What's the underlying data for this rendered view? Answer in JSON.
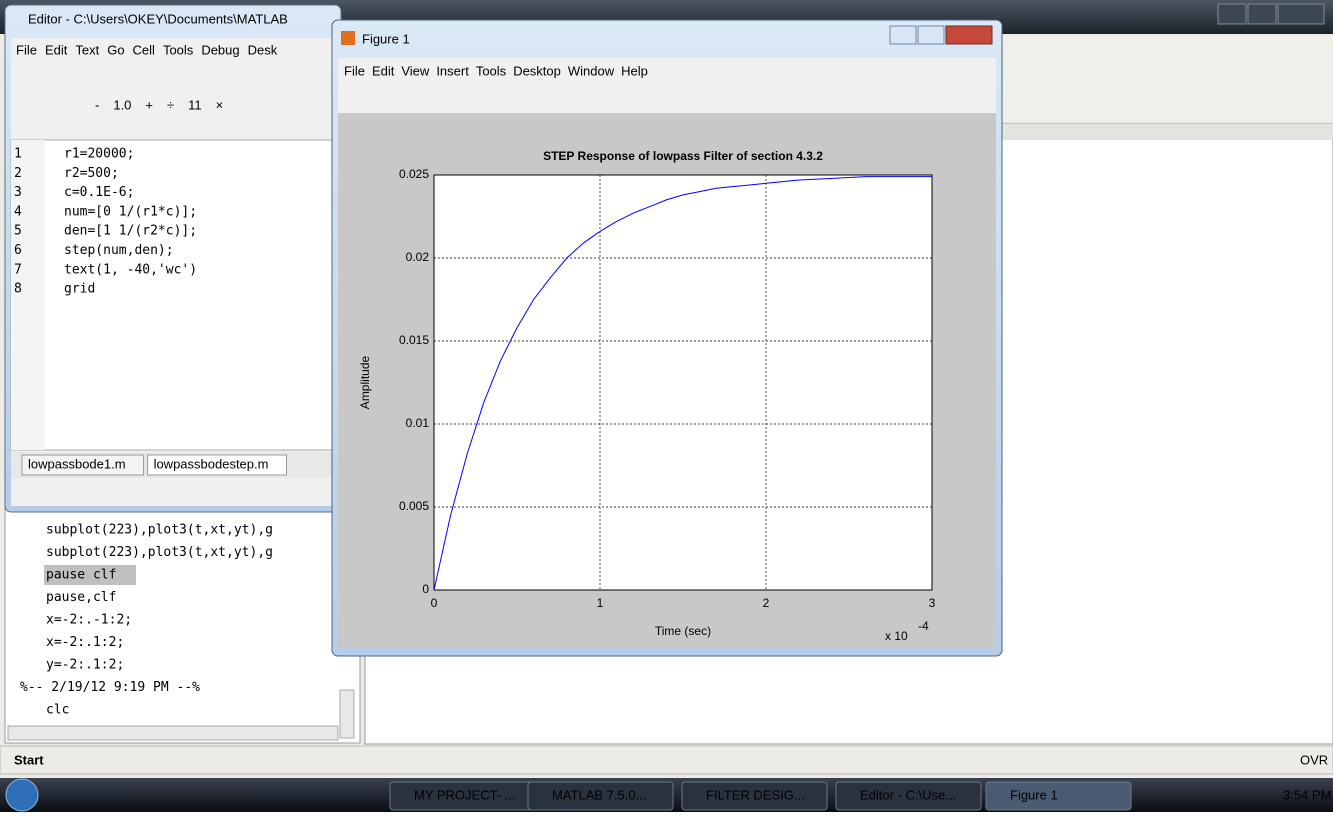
{
  "editor": {
    "title": "Editor - C:\\Users\\OKEY\\Documents\\MATLAB",
    "menu": [
      "File",
      "Edit",
      "Text",
      "Go",
      "Cell",
      "Tools",
      "Debug",
      "Desk"
    ],
    "toolbar": [
      "-",
      "1.0",
      "+",
      "÷",
      "11",
      "×"
    ],
    "line_numbers": [
      "1",
      "2",
      "3",
      "4",
      "5",
      "6",
      "7",
      "8"
    ],
    "code": [
      "r1=20000;",
      "r2=500;",
      "c=0.1E-6;",
      "num=[0 1/(r1*c)];",
      "den=[1 1/(r2*c)];",
      "step(num,den);",
      "text(1, -40,'wc')",
      "grid"
    ],
    "tabs": [
      "lowpassbode1.m",
      "lowpassbodestep.m"
    ]
  },
  "command_history": {
    "lines": [
      "subplot(223),plot3(t,xt,yt),g",
      "subplot(223),plot3(t,xt,yt),g",
      "pause clf",
      "pause,clf",
      "x=-2:.-1:2;",
      "x=-2:.1:2;",
      "y=-2:.1:2;",
      "%-- 2/19/12  9:19 PM --%",
      "clc"
    ]
  },
  "figure": {
    "title": "Figure 1",
    "menu": [
      "File",
      "Edit",
      "View",
      "Insert",
      "Tools",
      "Desktop",
      "Window",
      "Help"
    ]
  },
  "chart_data": {
    "type": "line",
    "title": "STEP Response of lowpass Filter of section 4.3.2",
    "xlabel": "Time (sec)",
    "ylabel": "Amplitude",
    "x_scale_label": "x 10",
    "x_scale_exponent": "-4",
    "x": [
      0,
      0.1,
      0.2,
      0.3,
      0.4,
      0.5,
      0.6,
      0.7,
      0.8,
      0.9,
      1.0,
      1.1,
      1.2,
      1.3,
      1.4,
      1.5,
      1.6,
      1.7,
      1.8,
      1.9,
      2.0,
      2.2,
      2.4,
      2.6,
      2.8,
      3.0
    ],
    "values": [
      0,
      0.0045,
      0.0082,
      0.0113,
      0.0138,
      0.0158,
      0.0175,
      0.0188,
      0.02,
      0.0209,
      0.0216,
      0.0222,
      0.0227,
      0.0231,
      0.0235,
      0.0238,
      0.024,
      0.0242,
      0.0243,
      0.0244,
      0.0245,
      0.0247,
      0.0248,
      0.0249,
      0.0249,
      0.0249
    ],
    "color": "#0000ff",
    "xlim": [
      0,
      3
    ],
    "ylim": [
      0,
      0.025
    ],
    "xticks": [
      0,
      1,
      2,
      3
    ],
    "yticks": [
      0,
      0.005,
      0.01,
      0.015,
      0.02,
      0.025
    ],
    "grid": true
  },
  "status": {
    "start": "Start",
    "mode": "OVR"
  },
  "taskbar": {
    "items": [
      "MY PROJECT- ...",
      "MATLAB 7.5.0...",
      "FILTER DESIG...",
      "Editor - C:\\Use...",
      "Figure 1"
    ],
    "time": "3:54 PM"
  }
}
